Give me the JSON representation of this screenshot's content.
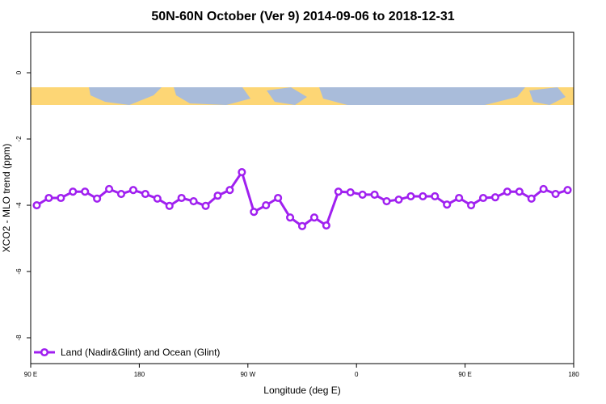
{
  "chart_data": {
    "type": "line",
    "title": "50N-60N October (Ver 9)   2014-09-06 to 2018-12-31",
    "x_label": "Longitude (deg E)",
    "y_label": "XCO2 - MLO trend (ppm)",
    "x": [
      95,
      105,
      115,
      125,
      135,
      145,
      155,
      165,
      175,
      185,
      195,
      205,
      215,
      225,
      235,
      245,
      255,
      265,
      275,
      285,
      295,
      305,
      315,
      325,
      335,
      345,
      355,
      365,
      375,
      385,
      395,
      405,
      415,
      425,
      435,
      445,
      455,
      465,
      475,
      485,
      495,
      505,
      515,
      525,
      535
    ],
    "series": [
      {
        "name": "Land (Nadir&Glint) and Ocean (Glint)",
        "color": "#a020f0",
        "values": [
          -4.0,
          -3.78,
          -3.78,
          -3.59,
          -3.59,
          -3.8,
          -3.51,
          -3.66,
          -3.54,
          -3.66,
          -3.8,
          -4.02,
          -3.78,
          -3.88,
          -4.02,
          -3.71,
          -3.54,
          -3.0,
          -4.2,
          -4.0,
          -3.78,
          -4.37,
          -4.63,
          -4.37,
          -4.61,
          -3.59,
          -3.61,
          -3.68,
          -3.68,
          -3.88,
          -3.83,
          -3.73,
          -3.73,
          -3.73,
          -3.98,
          -3.78,
          -4.0,
          -3.78,
          -3.76,
          -3.59,
          -3.59,
          -3.8,
          -3.51,
          -3.66,
          -3.54
        ]
      }
    ],
    "xlim": [
      90,
      540
    ],
    "xticks": [
      {
        "value": 90,
        "label": "90 E"
      },
      180,
      {
        "value": 270,
        "label": "90 W"
      },
      {
        "value": 360,
        "label": "0"
      },
      {
        "value": 450,
        "label": "90 E"
      },
      {
        "value": 540,
        "label": "180"
      }
    ],
    "ylim": [
      -8.78,
      1.22
    ],
    "yticks": [
      0,
      -2,
      -4,
      -6,
      -8
    ],
    "legend": "bottom-left"
  }
}
